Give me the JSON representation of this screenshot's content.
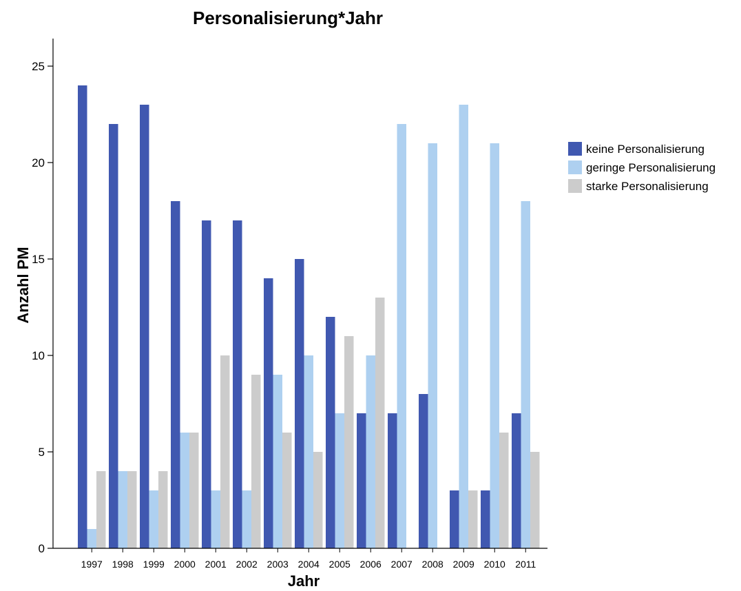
{
  "chart_data": {
    "type": "bar",
    "title": "Personalisierung*Jahr",
    "xlabel": "Jahr",
    "ylabel": "Anzahl PM",
    "ylim": [
      0,
      26
    ],
    "yticks": [
      "0",
      "5",
      "10",
      "15",
      "20",
      "25"
    ],
    "categories": [
      "1997",
      "1998",
      "1999",
      "2000",
      "2001",
      "2002",
      "2003",
      "2004",
      "2005",
      "2006",
      "2007",
      "2008",
      "2009",
      "2010",
      "2011"
    ],
    "series": [
      {
        "name": "keine Personalisierung",
        "color": "#4058b0",
        "values": [
          24,
          22,
          23,
          18,
          17,
          17,
          14,
          15,
          12,
          7,
          7,
          8,
          3,
          3,
          7
        ]
      },
      {
        "name": "geringe Personalisierung",
        "color": "#aed0f0",
        "values": [
          1,
          4,
          3,
          6,
          3,
          3,
          9,
          10,
          7,
          10,
          22,
          21,
          23,
          21,
          18
        ]
      },
      {
        "name": "starke Personalisierung",
        "color": "#cccccc",
        "values": [
          4,
          4,
          4,
          6,
          10,
          9,
          6,
          5,
          11,
          13,
          0,
          0,
          3,
          6,
          5
        ]
      }
    ],
    "legend_position": "right",
    "grid": false
  }
}
